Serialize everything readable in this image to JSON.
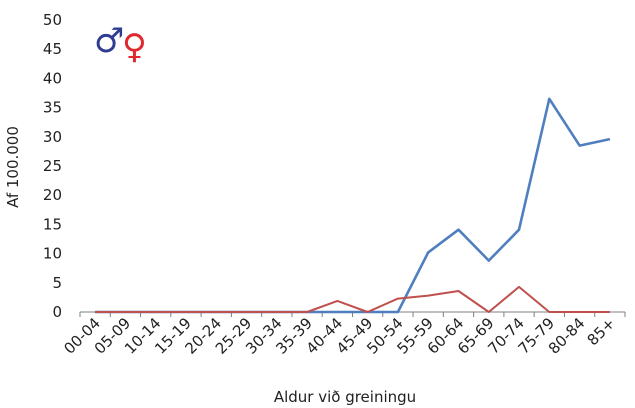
{
  "chart_data": {
    "type": "line",
    "xlabel": "Aldur við greiningu",
    "ylabel": "Af 100.000",
    "ylim": [
      0,
      50
    ],
    "yticks": [
      0,
      5,
      10,
      15,
      20,
      25,
      30,
      35,
      40,
      45,
      50
    ],
    "grid": false,
    "categories": [
      "00-04",
      "05-09",
      "10-14",
      "15-19",
      "20-24",
      "25-29",
      "30-34",
      "35-39",
      "40-44",
      "45-49",
      "50-54",
      "55-59",
      "60-64",
      "65-69",
      "70-74",
      "75-79",
      "80-84",
      "85+"
    ],
    "series": [
      {
        "color": "#4f7fbe",
        "values": [
          0,
          0,
          0,
          0,
          0,
          0,
          0,
          0,
          0,
          0,
          0,
          10.2,
          14.1,
          8.8,
          14.1,
          36.5,
          28.5,
          29.6
        ]
      },
      {
        "color": "#c0504d",
        "values": [
          0,
          0,
          0,
          0,
          0,
          0,
          0,
          0,
          1.9,
          0,
          2.3,
          2.8,
          3.6,
          0,
          4.3,
          0,
          0,
          0
        ]
      }
    ],
    "legend_symbols": [
      {
        "glyph": "♂",
        "icon": "male-symbol-icon",
        "color": "#2e3d92"
      },
      {
        "glyph": "♀",
        "icon": "female-symbol-icon",
        "color": "#e0282e"
      }
    ]
  }
}
